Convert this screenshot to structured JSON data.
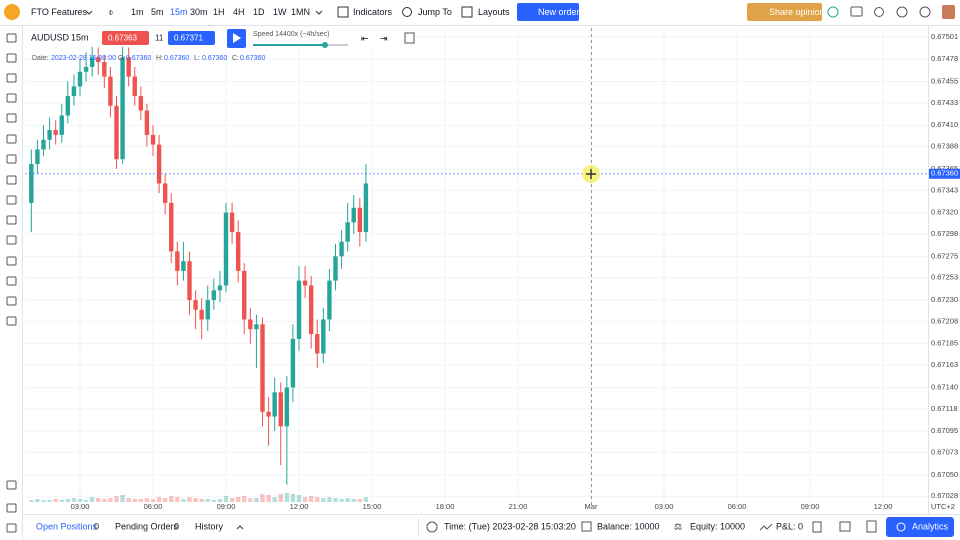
{
  "toolbar": {
    "workspace": "FTO Features",
    "timeframes": [
      "1m",
      "5m",
      "15m",
      "30m",
      "1H",
      "4H",
      "1D",
      "1W",
      "1MN"
    ],
    "indicators": "Indicators",
    "jump_to": "Jump To",
    "layouts": "Layouts",
    "new_order": "New order",
    "share": "Share opinion"
  },
  "chart_header": {
    "symbol": "AUDUSD",
    "timeframe": "15m",
    "bid": "0.67363",
    "spread": "11",
    "ask": "0.67371",
    "speed": "Speed 14400x (~4h/sec)"
  },
  "ohlc_legend": {
    "date_label": "Date:",
    "date": "2023-02-28 15:00:00",
    "o_label": "O:",
    "o": "0.67360",
    "h_label": "H:",
    "h": "0.67360",
    "l_label": "L:",
    "l": "0.67360",
    "c_label": "C:",
    "c": "0.67360"
  },
  "chart": {
    "type": "candlestick",
    "up_color": "#26a69a",
    "down_color": "#ef5350",
    "candles": [
      [
        0.6733,
        0.67385,
        0.673,
        0.6737
      ],
      [
        0.6737,
        0.67395,
        0.6736,
        0.67385
      ],
      [
        0.67385,
        0.6741,
        0.67378,
        0.67395
      ],
      [
        0.67395,
        0.67418,
        0.67385,
        0.67405
      ],
      [
        0.67405,
        0.67415,
        0.6739,
        0.674
      ],
      [
        0.674,
        0.67432,
        0.67392,
        0.6742
      ],
      [
        0.6742,
        0.67455,
        0.67412,
        0.6744
      ],
      [
        0.6744,
        0.67462,
        0.6743,
        0.6745
      ],
      [
        0.6745,
        0.67478,
        0.6744,
        0.67465
      ],
      [
        0.67465,
        0.67485,
        0.67455,
        0.6747
      ],
      [
        0.6747,
        0.67495,
        0.6746,
        0.6748
      ],
      [
        0.6748,
        0.6749,
        0.67462,
        0.67475
      ],
      [
        0.67475,
        0.67482,
        0.67448,
        0.6746
      ],
      [
        0.6746,
        0.6747,
        0.67418,
        0.6743
      ],
      [
        0.6743,
        0.6744,
        0.67365,
        0.67375
      ],
      [
        0.67375,
        0.675,
        0.6737,
        0.6748
      ],
      [
        0.6748,
        0.6749,
        0.6745,
        0.6746
      ],
      [
        0.6746,
        0.6747,
        0.6743,
        0.6744
      ],
      [
        0.6744,
        0.6745,
        0.67415,
        0.67425
      ],
      [
        0.67425,
        0.67432,
        0.67388,
        0.674
      ],
      [
        0.674,
        0.6741,
        0.67378,
        0.6739
      ],
      [
        0.6739,
        0.674,
        0.6734,
        0.6735
      ],
      [
        0.6735,
        0.6736,
        0.67318,
        0.6733
      ],
      [
        0.6733,
        0.6734,
        0.67268,
        0.6728
      ],
      [
        0.6728,
        0.6729,
        0.67245,
        0.6726
      ],
      [
        0.6726,
        0.6729,
        0.6725,
        0.6727
      ],
      [
        0.6727,
        0.6728,
        0.67215,
        0.6723
      ],
      [
        0.6723,
        0.6724,
        0.672,
        0.6722
      ],
      [
        0.6722,
        0.67232,
        0.6719,
        0.6721
      ],
      [
        0.6721,
        0.67245,
        0.67198,
        0.6723
      ],
      [
        0.6723,
        0.67252,
        0.6722,
        0.6724
      ],
      [
        0.6724,
        0.6726,
        0.67228,
        0.67245
      ],
      [
        0.67245,
        0.6733,
        0.67238,
        0.6732
      ],
      [
        0.6732,
        0.6733,
        0.67288,
        0.673
      ],
      [
        0.673,
        0.67312,
        0.67248,
        0.6726
      ],
      [
        0.6726,
        0.67268,
        0.67195,
        0.6721
      ],
      [
        0.6721,
        0.67222,
        0.67185,
        0.672
      ],
      [
        0.672,
        0.67215,
        0.6716,
        0.67205
      ],
      [
        0.67205,
        0.67212,
        0.671,
        0.67115
      ],
      [
        0.67115,
        0.6713,
        0.6708,
        0.6711
      ],
      [
        0.6711,
        0.6715,
        0.67095,
        0.67135
      ],
      [
        0.67135,
        0.67145,
        0.6706,
        0.671
      ],
      [
        0.671,
        0.67152,
        0.6704,
        0.6714
      ],
      [
        0.6714,
        0.67205,
        0.67125,
        0.6719
      ],
      [
        0.6719,
        0.67265,
        0.67178,
        0.6725
      ],
      [
        0.6725,
        0.67265,
        0.67232,
        0.67245
      ],
      [
        0.67245,
        0.67255,
        0.6718,
        0.67195
      ],
      [
        0.67195,
        0.6721,
        0.6716,
        0.67175
      ],
      [
        0.67175,
        0.67222,
        0.67165,
        0.6721
      ],
      [
        0.6721,
        0.67262,
        0.67198,
        0.6725
      ],
      [
        0.6725,
        0.67288,
        0.6724,
        0.67275
      ],
      [
        0.67275,
        0.67302,
        0.67262,
        0.6729
      ],
      [
        0.6729,
        0.6733,
        0.6728,
        0.6731
      ],
      [
        0.6731,
        0.67338,
        0.67298,
        0.67325
      ],
      [
        0.67325,
        0.67335,
        0.67285,
        0.673
      ],
      [
        0.673,
        0.6737,
        0.6729,
        0.6735
      ]
    ],
    "volumes": [
      2,
      3,
      2,
      2,
      3,
      2,
      3,
      4,
      3,
      2,
      5,
      4,
      3,
      4,
      6,
      7,
      4,
      3,
      3,
      4,
      3,
      5,
      4,
      6,
      5,
      3,
      5,
      4,
      3,
      3,
      2,
      3,
      6,
      4,
      5,
      6,
      4,
      4,
      8,
      7,
      5,
      8,
      9,
      8,
      7,
      5,
      6,
      5,
      4,
      5,
      4,
      3,
      4,
      3,
      3,
      5
    ],
    "ylim": [
      0.67019,
      0.67508
    ],
    "yticks": [
      0.67501,
      0.67478,
      0.67455,
      0.67433,
      {
        "value": 0.6741,
        "label": "0.67410"
      },
      0.67388,
      0.67365,
      0.67343,
      {
        "value": 0.6732,
        "label": "0.67320"
      },
      0.67298,
      0.67275,
      0.67253,
      {
        "value": 0.6723,
        "label": "0.67230"
      },
      0.67208,
      0.67185,
      0.67163,
      {
        "value": 0.6714,
        "label": "0.67140"
      },
      0.67118,
      0.67095,
      0.67073,
      {
        "value": 0.6705,
        "label": "0.67050"
      },
      0.67028
    ],
    "xticks": [
      "03:00",
      "06:00",
      "09:00",
      "12:00",
      "15:00",
      "18:00",
      "21:00",
      "Mar",
      "03:00",
      "06:00",
      "09:00",
      "12:00"
    ],
    "price_line": {
      "value": 0.6736,
      "label": "0.67360"
    },
    "timezone": "UTC+2",
    "grid": true
  },
  "bottom_bar": {
    "open_positions": "Open Positions",
    "open_count": "0",
    "pending_orders": "Pending Orders",
    "pending_count": "0",
    "history": "History",
    "time": "Time: (Tue) 2023-02-28 15:03:20",
    "balance": "Balance: 10000",
    "equity": "Equity: 10000",
    "pnl": "P&L: 0",
    "analytics": "Analytics"
  }
}
